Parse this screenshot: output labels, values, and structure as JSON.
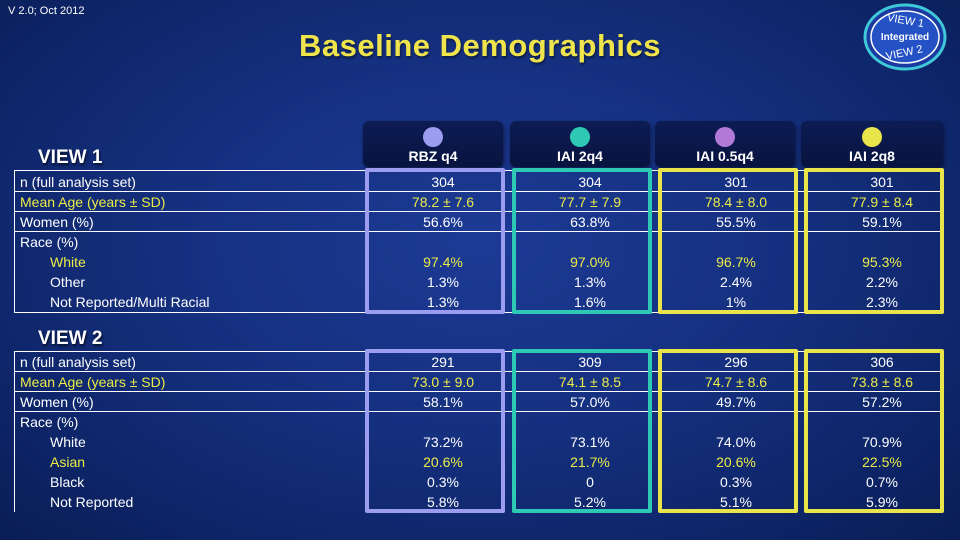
{
  "version": "V 2.0; Oct 2012",
  "title": "Baseline Demographics",
  "logo": {
    "line1": "VIEW 1",
    "line2": "Integrated",
    "line3": "VIEW 2"
  },
  "columns": [
    {
      "label": "RBZ q4",
      "color": "#9c9cf0"
    },
    {
      "label": "IAI 2q4",
      "color": "#2ec9b4"
    },
    {
      "label": "IAI 0.5q4",
      "color": "#b27ad6"
    },
    {
      "label": "IAI 2q8",
      "color": "#e8e44a"
    }
  ],
  "view1": {
    "label": "VIEW 1",
    "rows": [
      {
        "label": "n (full analysis set)",
        "values": [
          "304",
          "304",
          "301",
          "301"
        ]
      },
      {
        "label": "Mean Age (years ± SD)",
        "values": [
          "78.2 ± 7.6",
          "77.7 ± 7.9",
          "78.4 ± 8.0",
          "77.9 ± 8.4"
        ]
      },
      {
        "label": "Women (%)",
        "values": [
          "56.6%",
          "63.8%",
          "55.5%",
          "59.1%"
        ]
      },
      {
        "label": "Race (%)"
      },
      {
        "label": "White",
        "values": [
          "97.4%",
          "97.0%",
          "96.7%",
          "95.3%"
        ]
      },
      {
        "label": "Other",
        "values": [
          "1.3%",
          "1.3%",
          "2.4%",
          "2.2%"
        ]
      },
      {
        "label": "Not Reported/Multi Racial",
        "values": [
          "1.3%",
          "1.6%",
          "1%",
          "2.3%"
        ]
      }
    ]
  },
  "view2": {
    "label": "VIEW 2",
    "rows": [
      {
        "label": "n (full analysis set)",
        "values": [
          "291",
          "309",
          "296",
          "306"
        ]
      },
      {
        "label": "Mean Age (years ± SD)",
        "values": [
          "73.0 ± 9.0",
          "74.1 ± 8.5",
          "74.7 ± 8.6",
          "73.8 ± 8.6"
        ]
      },
      {
        "label": "Women (%)",
        "values": [
          "58.1%",
          "57.0%",
          "49.7%",
          "57.2%"
        ]
      },
      {
        "label": "Race (%)"
      },
      {
        "label": "White",
        "values": [
          "73.2%",
          "73.1%",
          "74.0%",
          "70.9%"
        ]
      },
      {
        "label": "Asian",
        "values": [
          "20.6%",
          "21.7%",
          "20.6%",
          "22.5%"
        ]
      },
      {
        "label": "Black",
        "values": [
          "0.3%",
          "0",
          "0.3%",
          "0.7%"
        ]
      },
      {
        "label": "Not Reported",
        "values": [
          "5.8%",
          "5.2%",
          "5.1%",
          "5.9%"
        ]
      }
    ]
  },
  "colors": {
    "title": "#f0e44c",
    "highlight_text": "#ecec48",
    "frame_rbz": "#9c9cf0",
    "frame_2q4": "#2ec9b4",
    "frame_yellow": "#e8e44a"
  }
}
